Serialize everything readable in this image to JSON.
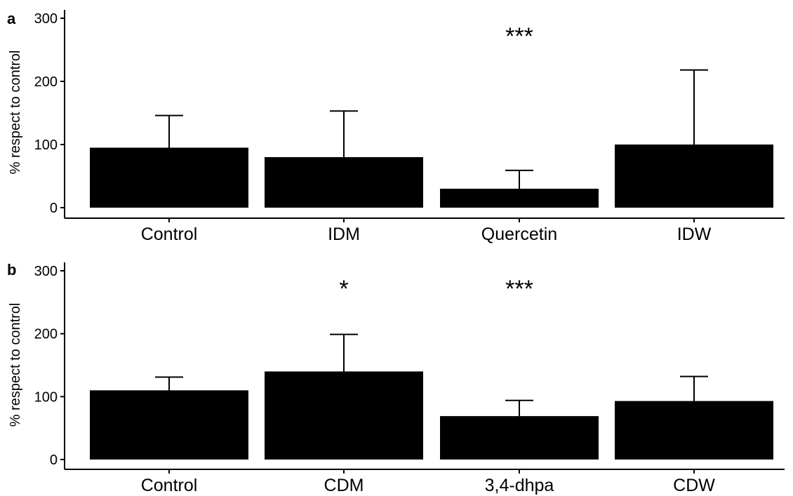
{
  "chart_data": [
    {
      "type": "bar",
      "panel_label": "a",
      "ylabel": "% respect to control",
      "ylim": [
        0,
        300
      ],
      "yticks": [
        0,
        100,
        200,
        300
      ],
      "categories": [
        "Control",
        "IDM",
        "Quercetin",
        "IDW"
      ],
      "values": [
        95,
        80,
        30,
        100
      ],
      "error_upper": [
        146,
        153,
        59,
        218
      ],
      "significance": [
        "",
        "",
        "***",
        ""
      ],
      "bar_color": "#000000",
      "grid": false
    },
    {
      "type": "bar",
      "panel_label": "b",
      "ylabel": "% respect to control",
      "ylim": [
        0,
        300
      ],
      "yticks": [
        0,
        100,
        200,
        300
      ],
      "categories": [
        "Control",
        "CDM",
        "3,4-dhpa",
        "CDW"
      ],
      "values": [
        110,
        140,
        69,
        93
      ],
      "error_upper": [
        131,
        199,
        94,
        132
      ],
      "significance": [
        "",
        "*",
        "***",
        ""
      ],
      "bar_color": "#000000",
      "grid": false
    }
  ]
}
